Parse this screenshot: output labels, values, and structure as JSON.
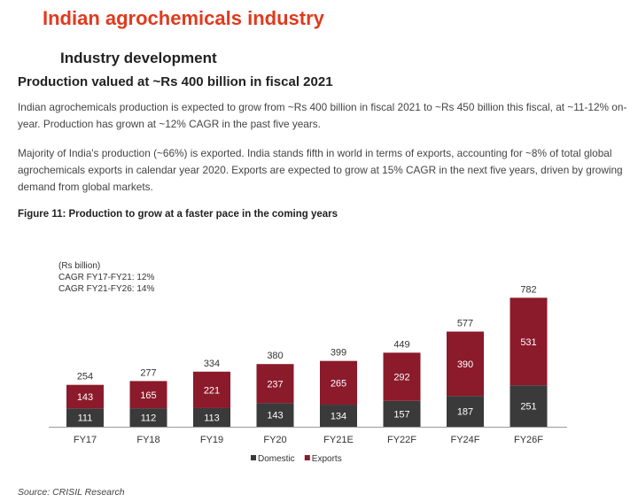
{
  "header": {
    "main_title": "Indian agrochemicals industry",
    "section_title": "Industry development",
    "sub_title": "Production valued at ~Rs 400 billion in fiscal 2021"
  },
  "paragraphs": [
    "Indian agrochemicals production is expected to grow from ~Rs 400 billion in fiscal 2021 to ~Rs 450 billion this fiscal, at ~11-12% on-year. Production has grown at ~12% CAGR in the past five years.",
    "Majority of India's production (~66%) is exported. India stands fifth in world in terms of exports, accounting for ~8% of total global agrochemicals exports in calendar year 2020. Exports are expected to grow at 15% CAGR in the next five years, driven by growing demand from global markets."
  ],
  "figure_title": "Figure 11: Production to grow at a faster pace in the coming years",
  "chart_notes": [
    "(Rs billion)",
    "CAGR FY17-FY21: 12%",
    "CAGR FY21-FY26: 14%"
  ],
  "source": "Source: CRISIL Research",
  "chart_data": {
    "type": "bar",
    "stacked": true,
    "categories": [
      "FY17",
      "FY18",
      "FY19",
      "FY20",
      "FY21E",
      "FY22F",
      "FY24F",
      "FY26F"
    ],
    "series": [
      {
        "name": "Domestic",
        "values": [
          111,
          112,
          113,
          143,
          134,
          157,
          187,
          251
        ],
        "color": "#3a3a3a"
      },
      {
        "name": "Exports",
        "values": [
          143,
          165,
          221,
          237,
          265,
          292,
          390,
          531
        ],
        "color": "#8b1a2b"
      }
    ],
    "totals": [
      254,
      277,
      334,
      380,
      399,
      449,
      577,
      782
    ],
    "ylabel": "(Rs billion)",
    "legend_position": "bottom-center",
    "grid": false
  }
}
